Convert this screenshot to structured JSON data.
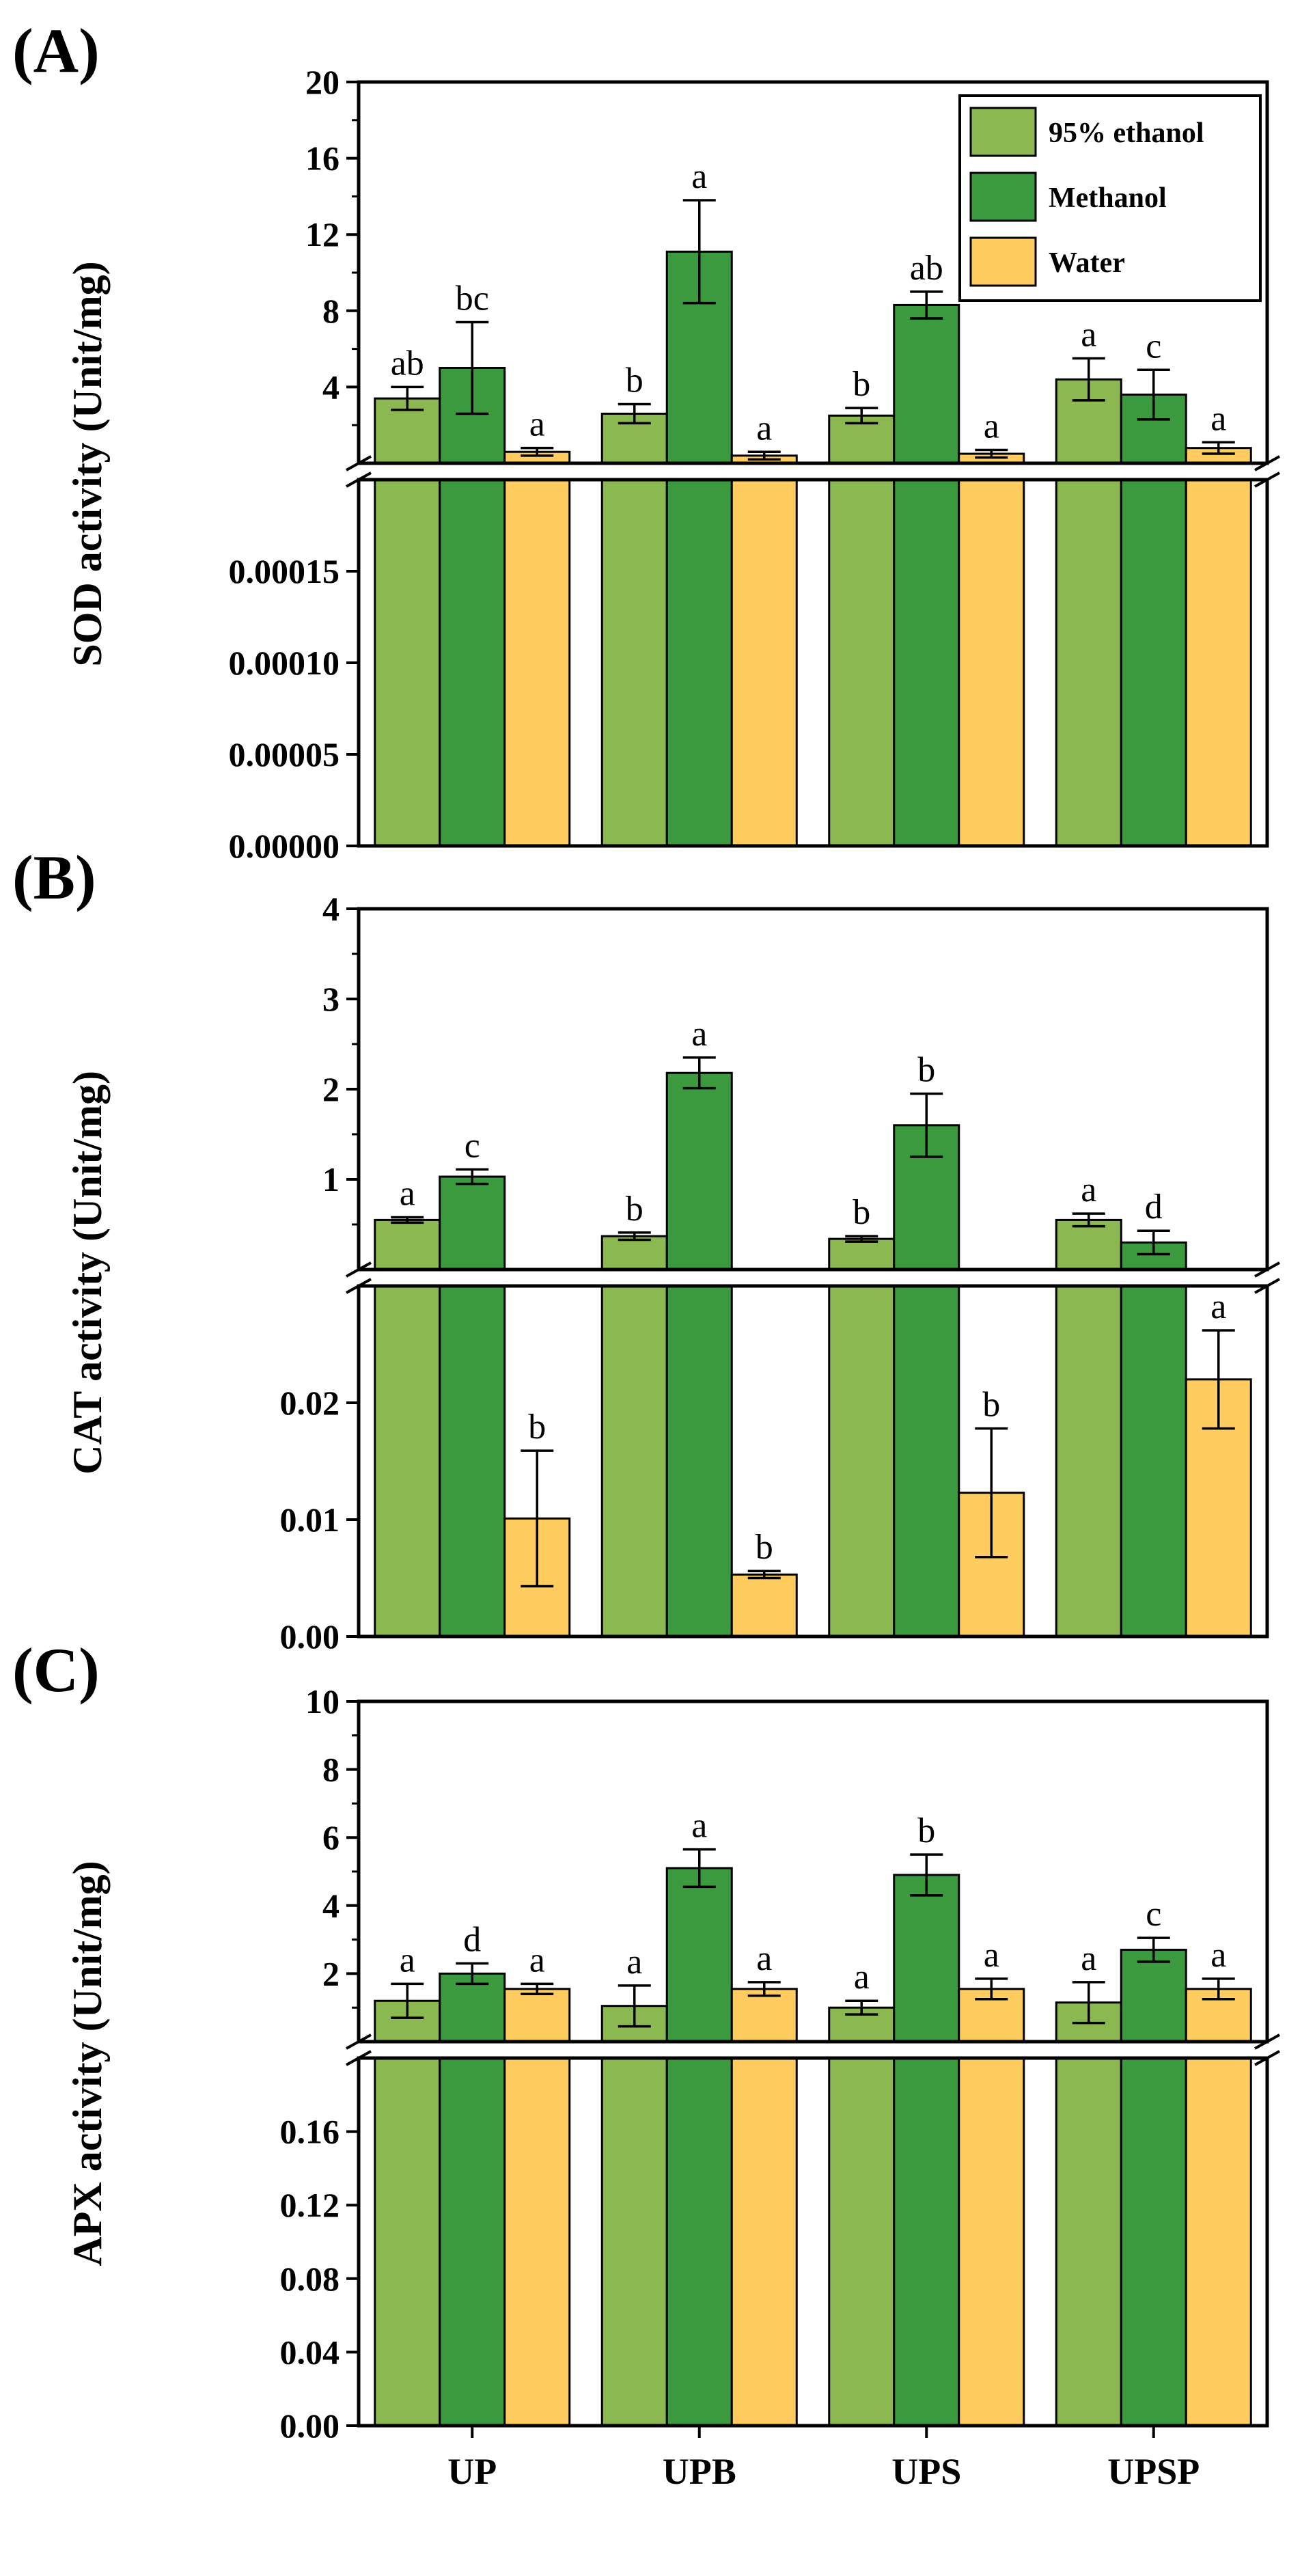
{
  "colors": {
    "ethanol": "#8BB850",
    "methanol": "#3A9A3D",
    "water": "#FFCD5F",
    "axis": "#000000"
  },
  "chart_data": {
    "type": "bar",
    "categories": [
      "UP",
      "UPB",
      "UPS",
      "UPSP"
    ],
    "legend": {
      "position": "top-right of panel A",
      "entries": [
        "95% ethanol",
        "Methanol",
        "Water"
      ]
    },
    "panels": [
      {
        "label": "(A)",
        "ylabel": "SOD activity (Unit/mg)",
        "broken_axis": true,
        "upper_range": [
          0,
          20
        ],
        "upper_ticks": [
          "4",
          "8",
          "12",
          "16",
          "20"
        ],
        "lower_range": [
          0,
          0.0002
        ],
        "lower_ticks": [
          "0.00000",
          "0.00005",
          "0.00010",
          "0.00015"
        ],
        "series": [
          {
            "name": "95% ethanol",
            "values": [
              3.4,
              2.6,
              2.5,
              4.4
            ],
            "errors": [
              0.6,
              0.5,
              0.4,
              1.1
            ],
            "letters": [
              "ab",
              "b",
              "b",
              "a"
            ]
          },
          {
            "name": "Methanol",
            "values": [
              5.0,
              11.1,
              8.3,
              3.6
            ],
            "errors": [
              2.4,
              2.7,
              0.7,
              1.3
            ],
            "letters": [
              "bc",
              "a",
              "ab",
              "c"
            ]
          },
          {
            "name": "Water",
            "values": [
              0.6,
              0.4,
              0.5,
              0.8
            ],
            "errors": [
              0.2,
              0.2,
              0.2,
              0.3
            ],
            "letters": [
              "a",
              "a",
              "a",
              "a"
            ]
          }
        ]
      },
      {
        "label": "(B)",
        "ylabel": "CAT activity (Unit/mg)",
        "broken_axis": true,
        "upper_range": [
          0,
          4
        ],
        "upper_ticks": [
          "1",
          "2",
          "3",
          "4"
        ],
        "lower_range": [
          0,
          0.03
        ],
        "lower_ticks": [
          "0.00",
          "0.01",
          "0.02"
        ],
        "series": [
          {
            "name": "95% ethanol",
            "values": [
              0.55,
              0.37,
              0.34,
              0.55
            ],
            "errors": [
              0.03,
              0.04,
              0.03,
              0.07
            ],
            "letters": [
              "a",
              "b",
              "b",
              "a"
            ]
          },
          {
            "name": "Methanol",
            "values": [
              1.03,
              2.18,
              1.6,
              0.3
            ],
            "errors": [
              0.08,
              0.17,
              0.35,
              0.13
            ],
            "letters": [
              "c",
              "a",
              "b",
              "d"
            ]
          },
          {
            "name": "Water",
            "values": [
              0.0101,
              0.0053,
              0.0123,
              0.022
            ],
            "errors": [
              0.0058,
              0.0003,
              0.0055,
              0.0042
            ],
            "letters": [
              "b",
              "b",
              "b",
              "a"
            ]
          }
        ]
      },
      {
        "label": "(C)",
        "ylabel": "APX activity (Unit/mg)",
        "broken_axis": true,
        "upper_range": [
          0,
          10
        ],
        "upper_ticks": [
          "2",
          "4",
          "6",
          "8",
          "10"
        ],
        "lower_range": [
          0,
          0.2
        ],
        "lower_ticks": [
          "0.00",
          "0.04",
          "0.08",
          "0.12",
          "0.16"
        ],
        "series": [
          {
            "name": "95% ethanol",
            "values": [
              1.2,
              1.05,
              1.0,
              1.15
            ],
            "errors": [
              0.5,
              0.6,
              0.2,
              0.6
            ],
            "letters": [
              "a",
              "a",
              "a",
              "a"
            ]
          },
          {
            "name": "Methanol",
            "values": [
              2.0,
              5.1,
              4.9,
              2.7
            ],
            "errors": [
              0.3,
              0.55,
              0.6,
              0.35
            ],
            "letters": [
              "d",
              "a",
              "b",
              "c"
            ]
          },
          {
            "name": "Water",
            "values": [
              1.55,
              1.55,
              1.55,
              1.55
            ],
            "errors": [
              0.15,
              0.2,
              0.3,
              0.3
            ],
            "letters": [
              "a",
              "a",
              "a",
              "a"
            ]
          }
        ]
      }
    ]
  }
}
